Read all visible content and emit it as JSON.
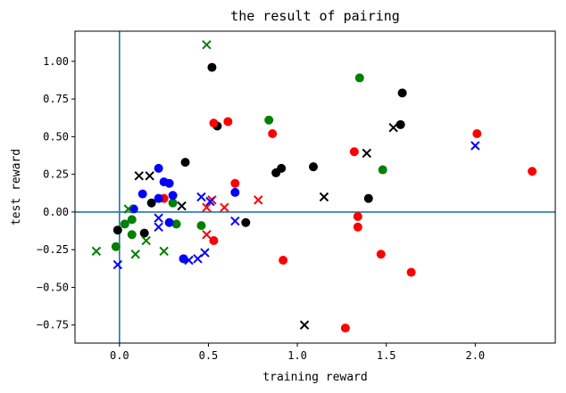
{
  "chart_data": {
    "type": "scatter",
    "title": "the result of pairing",
    "xlabel": "training reward",
    "ylabel": "test reward",
    "xlim": [
      -0.25,
      2.45
    ],
    "ylim": [
      -0.87,
      1.2
    ],
    "xticks": [
      0.0,
      0.5,
      1.0,
      1.5,
      2.0
    ],
    "xtick_labels": [
      "0.0",
      "0.5",
      "1.0",
      "1.5",
      "2.0"
    ],
    "yticks": [
      -0.75,
      -0.5,
      -0.25,
      0.0,
      0.25,
      0.5,
      0.75,
      1.0
    ],
    "ytick_labels": [
      "−0.75",
      "−0.50",
      "−0.25",
      "0.00",
      "0.25",
      "0.50",
      "0.75",
      "1.00"
    ],
    "reference_lines": [
      {
        "axis": "x",
        "value": 0.0,
        "color": "#1f77b4"
      },
      {
        "axis": "y",
        "value": 0.0,
        "color": "#1f77b4"
      }
    ],
    "series": [
      {
        "name": "black-circle",
        "color": "#000000",
        "marker": "circle",
        "points": [
          [
            0.52,
            0.96
          ],
          [
            1.59,
            0.79
          ],
          [
            0.55,
            0.57
          ],
          [
            1.58,
            0.58
          ],
          [
            0.37,
            0.33
          ],
          [
            0.91,
            0.29
          ],
          [
            0.88,
            0.26
          ],
          [
            1.09,
            0.3
          ],
          [
            1.4,
            0.09
          ],
          [
            0.18,
            0.06
          ],
          [
            -0.01,
            -0.12
          ],
          [
            0.14,
            -0.14
          ],
          [
            0.71,
            -0.07
          ]
        ]
      },
      {
        "name": "red-circle",
        "color": "#ff0000",
        "marker": "circle",
        "points": [
          [
            0.53,
            0.59
          ],
          [
            0.61,
            0.6
          ],
          [
            0.86,
            0.52
          ],
          [
            2.01,
            0.52
          ],
          [
            1.32,
            0.4
          ],
          [
            2.32,
            0.27
          ],
          [
            0.65,
            0.19
          ],
          [
            0.25,
            0.09
          ],
          [
            1.34,
            -0.03
          ],
          [
            1.34,
            -0.1
          ],
          [
            0.53,
            -0.19
          ],
          [
            1.47,
            -0.28
          ],
          [
            0.92,
            -0.32
          ],
          [
            1.64,
            -0.4
          ],
          [
            1.27,
            -0.77
          ]
        ]
      },
      {
        "name": "green-circle",
        "color": "#008000",
        "marker": "circle",
        "points": [
          [
            1.35,
            0.89
          ],
          [
            0.84,
            0.61
          ],
          [
            1.48,
            0.28
          ],
          [
            0.3,
            0.06
          ],
          [
            0.32,
            -0.08
          ],
          [
            0.46,
            -0.09
          ],
          [
            0.07,
            -0.05
          ],
          [
            0.03,
            -0.08
          ],
          [
            0.07,
            -0.15
          ],
          [
            -0.02,
            -0.23
          ]
        ]
      },
      {
        "name": "blue-circle",
        "color": "#0000ff",
        "marker": "circle",
        "points": [
          [
            0.22,
            0.29
          ],
          [
            0.25,
            0.2
          ],
          [
            0.28,
            0.19
          ],
          [
            0.13,
            0.12
          ],
          [
            0.3,
            0.11
          ],
          [
            0.22,
            0.09
          ],
          [
            0.65,
            0.13
          ],
          [
            0.28,
            -0.07
          ],
          [
            0.36,
            -0.31
          ],
          [
            0.08,
            0.02
          ]
        ]
      },
      {
        "name": "black-x",
        "color": "#000000",
        "marker": "x",
        "points": [
          [
            0.11,
            0.24
          ],
          [
            0.17,
            0.24
          ],
          [
            1.39,
            0.39
          ],
          [
            1.54,
            0.56
          ],
          [
            1.15,
            0.1
          ],
          [
            0.35,
            0.04
          ],
          [
            1.04,
            -0.75
          ]
        ]
      },
      {
        "name": "red-x",
        "color": "#ff0000",
        "marker": "x",
        "points": [
          [
            0.52,
            0.08
          ],
          [
            0.59,
            0.03
          ],
          [
            0.78,
            0.08
          ],
          [
            0.49,
            0.03
          ],
          [
            0.49,
            -0.15
          ]
        ]
      },
      {
        "name": "green-x",
        "color": "#008000",
        "marker": "x",
        "points": [
          [
            0.49,
            1.11
          ],
          [
            0.05,
            0.02
          ],
          [
            -0.13,
            -0.26
          ],
          [
            0.15,
            -0.19
          ],
          [
            0.25,
            -0.26
          ],
          [
            0.09,
            -0.28
          ]
        ]
      },
      {
        "name": "blue-x",
        "color": "#0000ff",
        "marker": "x",
        "points": [
          [
            2.0,
            0.44
          ],
          [
            0.46,
            0.1
          ],
          [
            0.51,
            0.07
          ],
          [
            0.22,
            -0.04
          ],
          [
            0.22,
            -0.1
          ],
          [
            0.65,
            -0.06
          ],
          [
            0.48,
            -0.27
          ],
          [
            0.44,
            -0.31
          ],
          [
            0.39,
            -0.32
          ],
          [
            -0.01,
            -0.35
          ]
        ]
      }
    ]
  }
}
